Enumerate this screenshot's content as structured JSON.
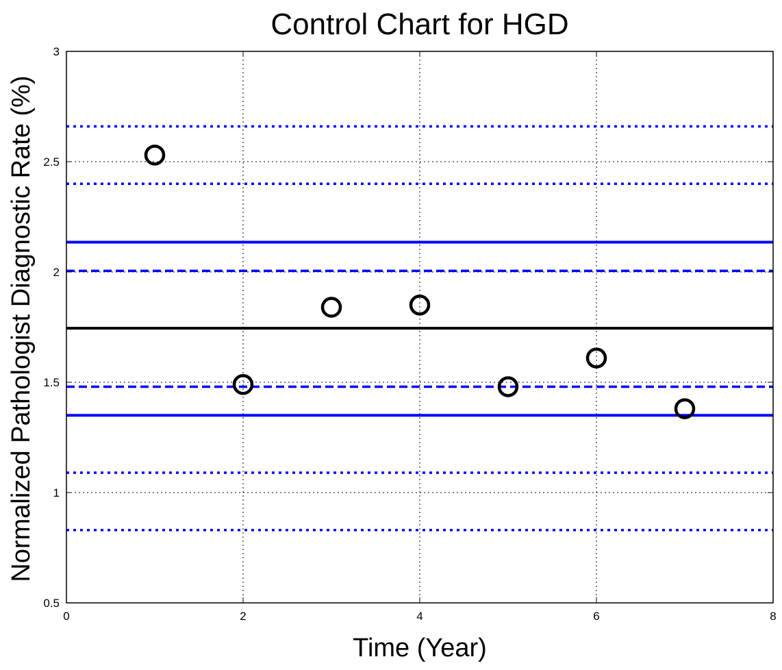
{
  "chart_data": {
    "type": "scatter",
    "title": "Control Chart for HGD",
    "xlabel": "Time (Year)",
    "ylabel": "Normalized Pathologist Diagnostic Rate (%)",
    "xlim": [
      0,
      8
    ],
    "ylim": [
      0.5,
      3
    ],
    "grid": true,
    "x_ticks": [
      "0",
      "2",
      "4",
      "6",
      "8"
    ],
    "y_ticks": [
      "0.5",
      "1",
      "1.5",
      "2",
      "2.5",
      "3"
    ],
    "points": {
      "marker": "open-circle",
      "color": "#000000",
      "x": [
        1,
        2,
        3,
        4,
        5,
        6,
        7
      ],
      "y": [
        2.53,
        1.49,
        1.84,
        1.85,
        1.48,
        1.61,
        1.38
      ]
    },
    "reference_lines": [
      {
        "y": 2.66,
        "style": "dotted",
        "color": "#0000ff"
      },
      {
        "y": 2.4,
        "style": "dotted",
        "color": "#0000ff"
      },
      {
        "y": 2.135,
        "style": "solid",
        "color": "#0000ff"
      },
      {
        "y": 2.005,
        "style": "dashed",
        "color": "#0000ff"
      },
      {
        "y": 1.745,
        "style": "solid",
        "color": "#000000"
      },
      {
        "y": 1.48,
        "style": "dashed",
        "color": "#0000ff"
      },
      {
        "y": 1.35,
        "style": "solid",
        "color": "#0000ff"
      },
      {
        "y": 1.09,
        "style": "dotted",
        "color": "#0000ff"
      },
      {
        "y": 0.83,
        "style": "dotted",
        "color": "#0000ff"
      }
    ]
  }
}
